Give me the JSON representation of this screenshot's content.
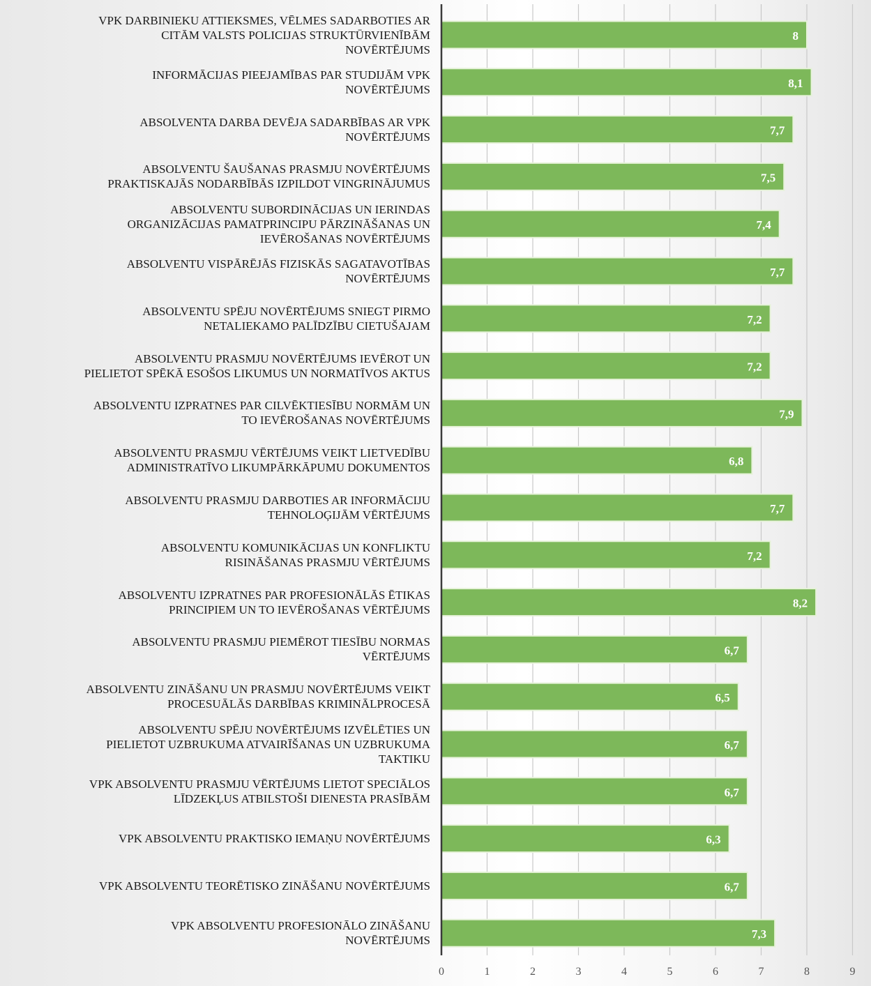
{
  "chart_data": {
    "type": "bar",
    "orientation": "horizontal",
    "categories": [
      "VPK DARBINIEKU ATTIEKSMES, VĒLMES SADARBOTIES AR CITĀM VALSTS POLICIJAS STRUKTŪRVIENĪBĀM NOVĒRTĒJUMS",
      "INFORMĀCIJAS PIEEJAMĪBAS PAR STUDIJĀM VPK NOVĒRTĒJUMS",
      "ABSOLVENTA DARBA DEVĒJA SADARBĪBAS AR VPK NOVĒRTĒJUMS",
      "ABSOLVENTU ŠAUŠANAS PRASMJU NOVĒRTĒJUMS PRAKTISKAJĀS NODARBĪBĀS IZPILDOT VINGRINĀJUMUS",
      "ABSOLVENTU SUBORDINĀCIJAS UN IERINDAS ORGANIZĀCIJAS PAMATPRINCIPU PĀRZINĀŠANAS UN IEVĒROŠANAS NOVĒRTĒJUMS",
      "ABSOLVENTU VISPĀRĒJĀS FIZISKĀS SAGATAVOTĪBAS NOVĒRTĒJUMS",
      "ABSOLVENTU SPĒJU NOVĒRTĒJUMS SNIEGT PIRMO NETALIEKAMO PALĪDZĪBU CIETUŠAJAM",
      "ABSOLVENTU PRASMJU NOVĒRTĒJUMS IEVĒROT UN PIELIETOT SPĒKĀ ESOŠOS LIKUMUS UN NORMATĪVOS AKTUS",
      "ABSOLVENTU IZPRATNES PAR CILVĒKTIESĪBU NORMĀM UN TO IEVĒROŠANAS NOVĒRTĒJUMS",
      "ABSOLVENTU PRASMJU VĒRTĒJUMS VEIKT LIETVEDĪBU ADMINISTRATĪVO LIKUMPĀRKĀPUMU DOKUMENTOS",
      "ABSOLVENTU PRASMJU DARBOTIES AR INFORMĀCIJU TEHNOLOĢIJĀM VĒRTĒJUMS",
      "ABSOLVENTU KOMUNIKĀCIJAS UN KONFLIKTU RISINĀŠANAS PRASMJU VĒRTĒJUMS",
      "ABSOLVENTU IZPRATNES PAR PROFESIONĀLĀS ĒTIKAS PRINCIPIEM UN TO IEVĒROŠANAS VĒRTĒJUMS",
      "ABSOLVENTU PRASMJU PIEMĒROT TIESĪBU NORMAS VĒRTĒJUMS",
      "ABSOLVENTU ZINĀŠANU UN PRASMJU NOVĒRTĒJUMS VEIKT PROCESUĀLĀS DARBĪBAS KRIMINĀLPROCESĀ",
      "ABSOLVENTU SPĒJU NOVĒRTĒJUMS IZVĒLĒTIES UN PIELIETOT UZBRUKUMA ATVAIRĪŠANAS UN UZBRUKUMA TAKTIKU",
      "VPK ABSOLVENTU PRASMJU VĒRTĒJUMS LIETOT SPECIĀLOS LĪDZEKĻUS ATBILSTOŠI DIENESTA PRASĪBĀM",
      "VPK ABSOLVENTU PRAKTISKO IEMAŅU NOVĒRTĒJUMS",
      "VPK ABSOLVENTU TEORĒTISKO ZINĀŠANU NOVĒRTĒJUMS",
      "VPK ABSOLVENTU PROFESIONĀLO ZINĀŠANU NOVĒRTĒJUMS"
    ],
    "label_lines": [
      [
        "VPK DARBINIEKU ATTIEKSMES, VĒLMES SADARBOTIES AR",
        "CITĀM VALSTS POLICIJAS STRUKTŪRVIENĪBĀM",
        "NOVĒRTĒJUMS"
      ],
      [
        "INFORMĀCIJAS PIEEJAMĪBAS PAR STUDIJĀM VPK",
        "NOVĒRTĒJUMS"
      ],
      [
        "ABSOLVENTA DARBA DEVĒJA SADARBĪBAS AR VPK",
        "NOVĒRTĒJUMS"
      ],
      [
        "ABSOLVENTU ŠAUŠANAS PRASMJU NOVĒRTĒJUMS",
        "PRAKTISKAJĀS NODARBĪBĀS IZPILDOT VINGRINĀJUMUS"
      ],
      [
        "ABSOLVENTU SUBORDINĀCIJAS UN IERINDAS",
        "ORGANIZĀCIJAS PAMATPRINCIPU PĀRZINĀŠANAS UN",
        "IEVĒROŠANAS NOVĒRTĒJUMS"
      ],
      [
        "ABSOLVENTU VISPĀRĒJĀS FIZISKĀS SAGATAVOTĪBAS",
        "NOVĒRTĒJUMS"
      ],
      [
        "ABSOLVENTU SPĒJU NOVĒRTĒJUMS SNIEGT PIRMO",
        "NETALIEKAMO PALĪDZĪBU CIETUŠAJAM"
      ],
      [
        "ABSOLVENTU PRASMJU NOVĒRTĒJUMS IEVĒROT UN",
        "PIELIETOT SPĒKĀ ESOŠOS LIKUMUS UN NORMATĪVOS AKTUS"
      ],
      [
        "ABSOLVENTU IZPRATNES PAR CILVĒKTIESĪBU NORMĀM UN",
        "TO IEVĒROŠANAS NOVĒRTĒJUMS"
      ],
      [
        "ABSOLVENTU PRASMJU VĒRTĒJUMS VEIKT LIETVEDĪBU",
        "ADMINISTRATĪVO LIKUMPĀRKĀPUMU DOKUMENTOS"
      ],
      [
        "ABSOLVENTU PRASMJU DARBOTIES AR INFORMĀCIJU",
        "TEHNOLOĢIJĀM VĒRTĒJUMS"
      ],
      [
        "ABSOLVENTU KOMUNIKĀCIJAS UN KONFLIKTU",
        "RISINĀŠANAS PRASMJU VĒRTĒJUMS"
      ],
      [
        "ABSOLVENTU IZPRATNES PAR PROFESIONĀLĀS ĒTIKAS",
        "PRINCIPIEM UN TO IEVĒROŠANAS VĒRTĒJUMS"
      ],
      [
        "ABSOLVENTU PRASMJU PIEMĒROT TIESĪBU NORMAS",
        "VĒRTĒJUMS"
      ],
      [
        "ABSOLVENTU ZINĀŠANU UN PRASMJU NOVĒRTĒJUMS VEIKT",
        "PROCESUĀLĀS DARBĪBAS KRIMINĀLPROCESĀ"
      ],
      [
        "ABSOLVENTU SPĒJU NOVĒRTĒJUMS IZVĒLĒTIES UN",
        "PIELIETOT UZBRUKUMA ATVAIRĪŠANAS UN UZBRUKUMA",
        "TAKTIKU"
      ],
      [
        "VPK ABSOLVENTU PRASMJU VĒRTĒJUMS LIETOT SPECIĀLOS",
        "LĪDZEKĻUS ATBILSTOŠI DIENESTA PRASĪBĀM"
      ],
      [
        "VPK ABSOLVENTU PRAKTISKO IEMAŅU NOVĒRTĒJUMS"
      ],
      [
        "VPK ABSOLVENTU TEORĒTISKO ZINĀŠANU NOVĒRTĒJUMS"
      ],
      [
        "VPK ABSOLVENTU PROFESIONĀLO ZINĀŠANU",
        "NOVĒRTĒJUMS"
      ]
    ],
    "values": [
      8,
      8.1,
      7.7,
      7.5,
      7.4,
      7.7,
      7.2,
      7.2,
      7.9,
      6.8,
      7.7,
      7.2,
      8.2,
      6.7,
      6.5,
      6.7,
      6.7,
      6.3,
      6.7,
      7.3
    ],
    "data_labels": [
      "8",
      "8,1",
      "7,7",
      "7,5",
      "7,4",
      "7,7",
      "7,2",
      "7,2",
      "7,9",
      "6,8",
      "7,7",
      "7,2",
      "8,2",
      "6,7",
      "6,5",
      "6,7",
      "6,7",
      "6,3",
      "6,7",
      "7,3"
    ],
    "xlim": [
      0,
      9
    ],
    "x_ticks": [
      "0",
      "1",
      "2",
      "3",
      "4",
      "5",
      "6",
      "7",
      "8",
      "9"
    ],
    "grid": true,
    "legend": false,
    "title": "",
    "xlabel": "",
    "ylabel": "",
    "colors": {
      "bar_fill": "#7db85a",
      "bar_stroke": "#e6f2d9",
      "data_label": "#ffffff",
      "axis_line": "#3a3a3a",
      "gridline": "#c9c9c9",
      "tick_label": "#555555",
      "category_label": "#1a1a1a"
    }
  }
}
